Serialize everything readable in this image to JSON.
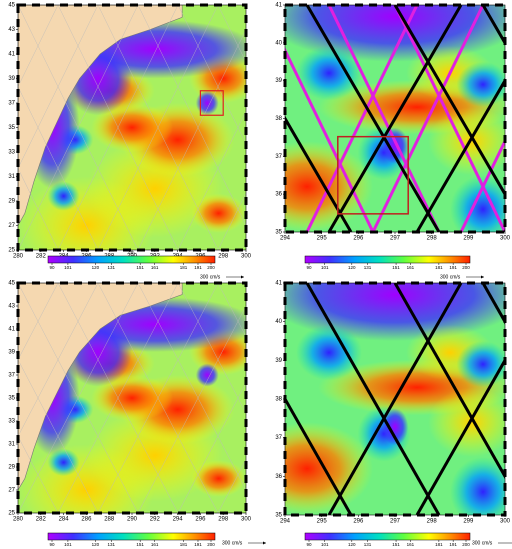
{
  "panels": [
    {
      "xticks": [
        280,
        282,
        284,
        286,
        288,
        290,
        292,
        294,
        296,
        298,
        300
      ],
      "yticks": [
        25,
        27,
        29,
        31,
        33,
        35,
        37,
        39,
        41,
        43,
        45
      ],
      "colorbar": {
        "unit": "cm",
        "ticks": [
          90,
          101,
          120,
          131,
          151,
          161,
          181,
          191,
          200
        ]
      },
      "scale_label": "300 cm/s"
    },
    {
      "xticks": [
        294,
        295,
        296,
        297,
        298,
        299,
        300
      ],
      "yticks": [
        35,
        36,
        37,
        38,
        39,
        40,
        41
      ],
      "colorbar": {
        "ticks": [
          90,
          101,
          120,
          131,
          151,
          161,
          181,
          191,
          200
        ]
      },
      "scale_label": "300 cm/s"
    },
    {
      "xticks": [
        280,
        282,
        284,
        286,
        288,
        290,
        292,
        294,
        296,
        298,
        300
      ],
      "yticks": [
        25,
        27,
        29,
        31,
        33,
        35,
        37,
        39,
        41,
        43,
        45
      ],
      "colorbar": {
        "ticks": [
          90,
          101,
          120,
          131,
          151,
          161,
          181,
          191,
          200
        ]
      },
      "scale_label": "300 cm/s"
    },
    {
      "xticks": [
        294,
        295,
        296,
        297,
        298,
        299,
        300
      ],
      "yticks": [
        35,
        36,
        37,
        38,
        39,
        40,
        41
      ],
      "colorbar": {
        "ticks": [
          90,
          101,
          120,
          131,
          151,
          161,
          181,
          191,
          200
        ]
      },
      "scale_label": "300 cm/s"
    }
  ]
}
